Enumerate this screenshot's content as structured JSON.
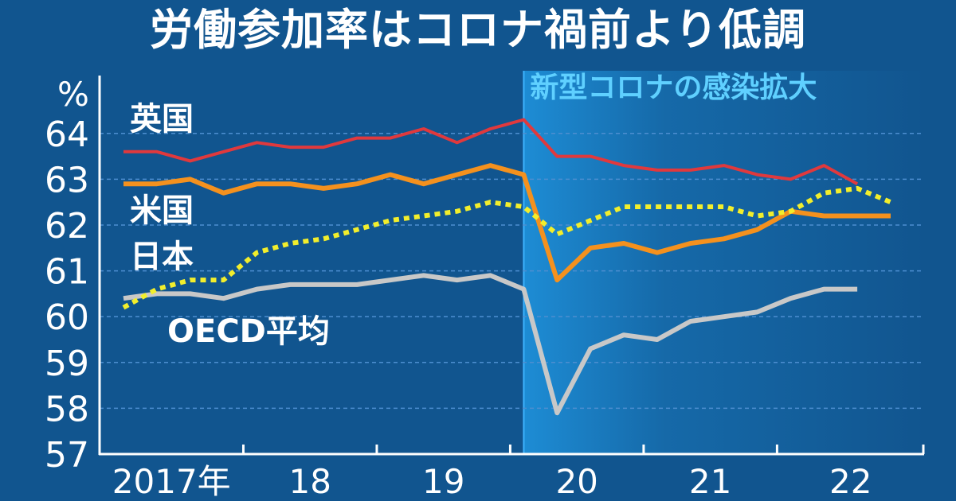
{
  "title": "労働参加率はコロナ禍前より低調",
  "colors": {
    "background": "#11558f",
    "uk": "#e0393d",
    "us": "#f4911e",
    "japan": "#f2ee2c",
    "oecd": "#c8c8c8",
    "highlight": "#1e8fd8",
    "highlight_text": "#5fd0ff",
    "axis": "#ffffff",
    "grid": "#4d8ed0"
  },
  "chart_data": {
    "type": "line",
    "title": "労働参加率はコロナ禍前より低調",
    "ylabel": "%",
    "ylim": [
      57,
      64.5
    ],
    "yticks": [
      "57",
      "58",
      "59",
      "60",
      "61",
      "62",
      "63",
      "64"
    ],
    "grid": "horizontal dashed",
    "x_range": [
      2017.0,
      2022.75
    ],
    "categories": [
      "2017年",
      "18",
      "19",
      "20",
      "21",
      "22"
    ],
    "highlight": {
      "label": "新型コロナの感染拡大",
      "x_start": 2020.0,
      "x_end": 2022.75
    },
    "series": [
      {
        "name": "英国",
        "key": "uk",
        "style": "solid",
        "x": [
          2017.0,
          2017.25,
          2017.5,
          2017.75,
          2018.0,
          2018.25,
          2018.5,
          2018.75,
          2019.0,
          2019.25,
          2019.5,
          2019.75,
          2020.0,
          2020.25,
          2020.5,
          2020.75,
          2021.0,
          2021.25,
          2021.5,
          2021.75,
          2022.0,
          2022.25,
          2022.5
        ],
        "y": [
          63.6,
          63.6,
          63.4,
          63.6,
          63.8,
          63.7,
          63.7,
          63.9,
          63.9,
          64.1,
          63.8,
          64.1,
          64.3,
          63.5,
          63.5,
          63.3,
          63.2,
          63.2,
          63.3,
          63.1,
          63.0,
          63.3,
          62.9
        ]
      },
      {
        "name": "米国",
        "key": "us",
        "style": "solid",
        "x": [
          2017.0,
          2017.25,
          2017.5,
          2017.75,
          2018.0,
          2018.25,
          2018.5,
          2018.75,
          2019.0,
          2019.25,
          2019.5,
          2019.75,
          2020.0,
          2020.25,
          2020.5,
          2020.75,
          2021.0,
          2021.25,
          2021.5,
          2021.75,
          2022.0,
          2022.25,
          2022.5,
          2022.75
        ],
        "y": [
          62.9,
          62.9,
          63.0,
          62.7,
          62.9,
          62.9,
          62.8,
          62.9,
          63.1,
          62.9,
          63.1,
          63.3,
          63.1,
          60.8,
          61.5,
          61.6,
          61.4,
          61.6,
          61.7,
          61.9,
          62.3,
          62.2,
          62.2,
          62.2
        ]
      },
      {
        "name": "日本",
        "key": "japan",
        "style": "dotted",
        "x": [
          2017.0,
          2017.25,
          2017.5,
          2017.75,
          2018.0,
          2018.25,
          2018.5,
          2018.75,
          2019.0,
          2019.25,
          2019.5,
          2019.75,
          2020.0,
          2020.25,
          2020.5,
          2020.75,
          2021.0,
          2021.25,
          2021.5,
          2021.75,
          2022.0,
          2022.25,
          2022.5,
          2022.75
        ],
        "y": [
          60.2,
          60.6,
          60.8,
          60.8,
          61.4,
          61.6,
          61.7,
          61.9,
          62.1,
          62.2,
          62.3,
          62.5,
          62.4,
          61.8,
          62.1,
          62.4,
          62.4,
          62.4,
          62.4,
          62.2,
          62.3,
          62.7,
          62.8,
          62.5
        ]
      },
      {
        "name": "OECD平均",
        "key": "oecd",
        "style": "solid",
        "x": [
          2017.0,
          2017.25,
          2017.5,
          2017.75,
          2018.0,
          2018.25,
          2018.5,
          2018.75,
          2019.0,
          2019.25,
          2019.5,
          2019.75,
          2020.0,
          2020.25,
          2020.5,
          2020.75,
          2021.0,
          2021.25,
          2021.5,
          2021.75,
          2022.0,
          2022.25,
          2022.5
        ],
        "y": [
          60.4,
          60.5,
          60.5,
          60.4,
          60.6,
          60.7,
          60.7,
          60.7,
          60.8,
          60.9,
          60.8,
          60.9,
          60.6,
          57.9,
          59.3,
          59.6,
          59.5,
          59.9,
          60.0,
          60.1,
          60.4,
          60.6,
          60.6
        ]
      }
    ]
  }
}
